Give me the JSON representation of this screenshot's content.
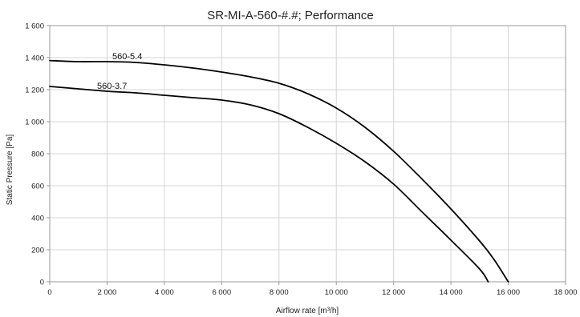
{
  "chart_data": {
    "type": "line",
    "title": "SR-MI-A-560-#.#; Performance",
    "xlabel": "Airflow rate [m³/h]",
    "ylabel": "Static Pressure [Pa]",
    "xlim": [
      0,
      18000
    ],
    "ylim": [
      0,
      1600
    ],
    "x_ticks": [
      0,
      2000,
      4000,
      6000,
      8000,
      10000,
      12000,
      14000,
      16000,
      18000
    ],
    "x_tick_labels": [
      "0",
      "2 000",
      "4 000",
      "6 000",
      "8 000",
      "10 000",
      "12 000",
      "14 000",
      "16 000",
      "18 000"
    ],
    "y_ticks": [
      0,
      200,
      400,
      600,
      800,
      1000,
      1200,
      1400,
      1600
    ],
    "y_tick_labels": [
      "0",
      "200",
      "400",
      "600",
      "800",
      "1 000",
      "1 200",
      "1 400",
      "1 600"
    ],
    "grid": true,
    "line_color": "#000000",
    "series": [
      {
        "name": "560-5.4",
        "x": [
          0,
          1000,
          2000,
          3000,
          4000,
          5000,
          6000,
          7000,
          8000,
          9000,
          10000,
          11000,
          12000,
          13000,
          14000,
          15000,
          15500,
          16000
        ],
        "y": [
          1382,
          1375,
          1375,
          1370,
          1355,
          1335,
          1310,
          1280,
          1240,
          1175,
          1085,
          965,
          815,
          640,
          455,
          255,
          140,
          0
        ]
      },
      {
        "name": "560-3.7",
        "x": [
          0,
          1000,
          2000,
          3000,
          4000,
          5000,
          6000,
          7000,
          8000,
          9000,
          10000,
          11000,
          12000,
          13000,
          14000,
          15000,
          15300
        ],
        "y": [
          1220,
          1205,
          1190,
          1180,
          1165,
          1150,
          1135,
          1105,
          1050,
          965,
          865,
          750,
          610,
          435,
          260,
          80,
          0
        ]
      }
    ]
  }
}
